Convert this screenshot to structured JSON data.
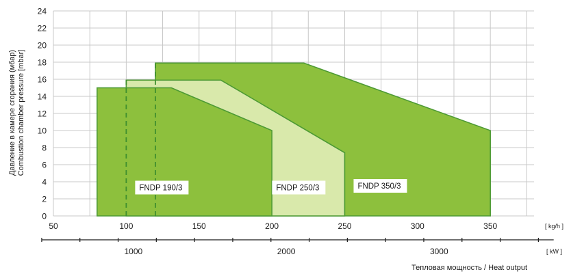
{
  "chart_data": {
    "type": "area",
    "ylabel_lines": [
      "Давление в камере сгорания (мбар)",
      "Combustion chamber pressure [mbar]"
    ],
    "xlabel": "Тепловая мощность / Heat output",
    "x_unit_top": "[ kg/h ]",
    "x_unit_bottom": "[ kW ]",
    "xlim": [
      50,
      380
    ],
    "ylim": [
      0,
      24
    ],
    "y_ticks": [
      0,
      2,
      4,
      6,
      8,
      10,
      12,
      14,
      16,
      18,
      20,
      22,
      24
    ],
    "x_ticks_kgh": [
      50,
      100,
      150,
      200,
      250,
      300,
      350
    ],
    "x_ticks_kw": [
      1000,
      2000,
      3000
    ],
    "kw_per_kgh": 9.53,
    "grid": true,
    "colors": {
      "fndp_190": "#8dc03d",
      "fndp_250": "#d9e9ab",
      "fndp_350": "#8dc03d",
      "outline": "#4d9a34",
      "grid": "#c8c8c8"
    },
    "series": [
      {
        "name": "FNDP 350/3",
        "points": [
          [
            120,
            0
          ],
          [
            120,
            17.9
          ],
          [
            222,
            17.9
          ],
          [
            350,
            10
          ],
          [
            350,
            0
          ]
        ]
      },
      {
        "name": "FNDP 250/3",
        "points": [
          [
            100,
            0
          ],
          [
            100,
            15.9
          ],
          [
            165,
            15.9
          ],
          [
            250,
            7.4
          ],
          [
            250,
            0
          ]
        ]
      },
      {
        "name": "FNDP 190/3",
        "points": [
          [
            80,
            0
          ],
          [
            80,
            15
          ],
          [
            131,
            15
          ],
          [
            200,
            10
          ],
          [
            200,
            0
          ]
        ]
      }
    ],
    "dashed_lines": [
      {
        "x": 100,
        "y_top": 15.9
      },
      {
        "x": 120,
        "y_top": 17.9
      }
    ],
    "labels": [
      {
        "text": "FNDP 190/3",
        "x": 108,
        "y": 3.0
      },
      {
        "text": "FNDP 250/3",
        "x": 202,
        "y": 3.0
      },
      {
        "text": "FNDP 350/3",
        "x": 258,
        "y": 3.2
      }
    ]
  }
}
